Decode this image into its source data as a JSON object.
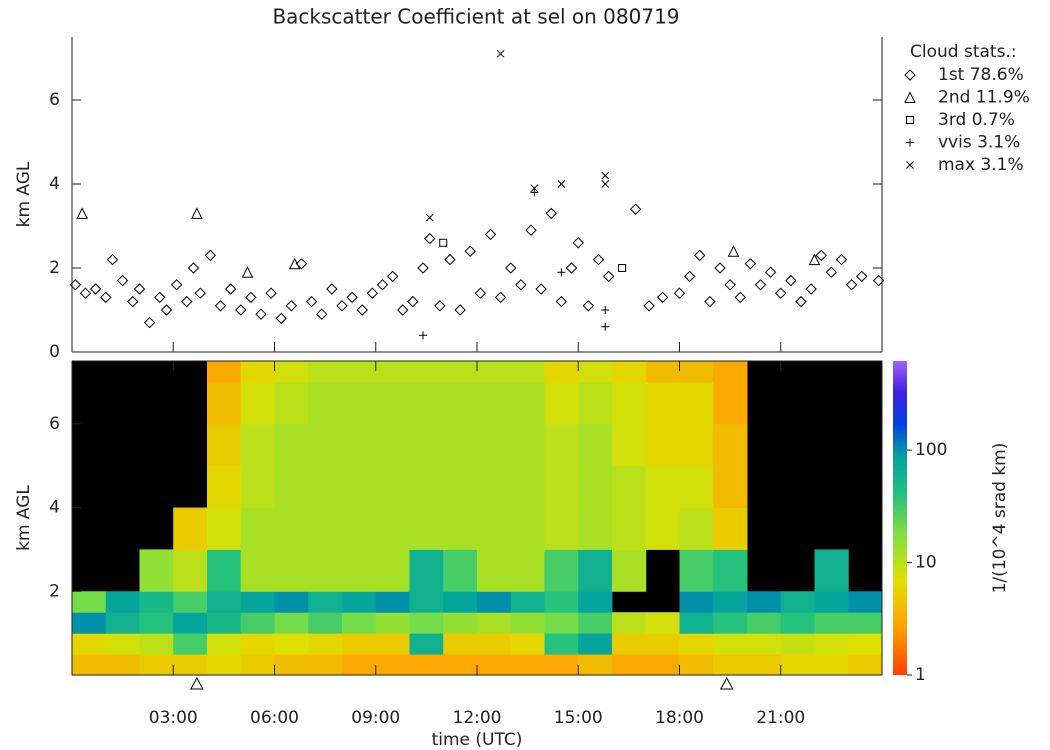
{
  "chart_data": [
    {
      "type": "scatter",
      "title": "Backscatter Coefficient at sel on 080719",
      "ylabel": "km AGL",
      "xlim": [
        0,
        24
      ],
      "ylim": [
        0,
        7.5
      ],
      "yticks": [
        0,
        2,
        4,
        6
      ],
      "xticks": [
        {
          "value": 3,
          "label": "03:00"
        },
        {
          "value": 6,
          "label": "06:00"
        },
        {
          "value": 9,
          "label": "09:00"
        },
        {
          "value": 12,
          "label": "12:00"
        },
        {
          "value": 15,
          "label": "15:00"
        },
        {
          "value": 18,
          "label": "18:00"
        },
        {
          "value": 21,
          "label": "21:00"
        }
      ],
      "legend_title": "Cloud stats.:",
      "color": "#000000",
      "series": [
        {
          "name": "1st 78.6%",
          "marker": "diamond",
          "x": [
            0.1,
            0.4,
            0.7,
            1.0,
            1.2,
            1.5,
            1.8,
            2.0,
            2.3,
            2.6,
            2.8,
            3.1,
            3.4,
            3.6,
            3.8,
            4.1,
            4.4,
            4.7,
            5.0,
            5.3,
            5.6,
            5.9,
            6.2,
            6.5,
            6.8,
            7.1,
            7.4,
            7.7,
            8.0,
            8.3,
            8.6,
            8.9,
            9.2,
            9.5,
            9.8,
            10.1,
            10.4,
            10.6,
            10.9,
            11.2,
            11.5,
            11.8,
            12.1,
            12.4,
            12.7,
            13.0,
            13.3,
            13.6,
            13.9,
            14.2,
            14.5,
            14.8,
            15.0,
            15.3,
            15.6,
            15.9,
            16.7,
            17.1,
            17.5,
            18.0,
            18.3,
            18.6,
            18.9,
            19.2,
            19.5,
            19.8,
            20.1,
            20.4,
            20.7,
            21.0,
            21.3,
            21.6,
            21.9,
            22.2,
            22.5,
            22.8,
            23.1,
            23.4,
            23.9
          ],
          "values": [
            1.6,
            1.4,
            1.5,
            1.3,
            2.2,
            1.7,
            1.2,
            1.5,
            0.7,
            1.3,
            1.0,
            1.6,
            1.2,
            2.0,
            1.4,
            2.3,
            1.1,
            1.5,
            1.0,
            1.3,
            0.9,
            1.4,
            0.8,
            1.1,
            2.1,
            1.2,
            0.9,
            1.5,
            1.1,
            1.3,
            1.0,
            1.4,
            1.6,
            1.8,
            1.0,
            1.2,
            2.0,
            2.7,
            1.1,
            2.2,
            1.0,
            2.4,
            1.4,
            2.8,
            1.3,
            2.0,
            1.6,
            2.9,
            1.5,
            3.3,
            1.2,
            2.0,
            2.6,
            1.1,
            2.2,
            1.8,
            3.4,
            1.1,
            1.3,
            1.4,
            1.8,
            2.3,
            1.2,
            2.0,
            1.6,
            1.3,
            2.1,
            1.6,
            1.9,
            1.4,
            1.7,
            1.2,
            1.5,
            2.3,
            1.9,
            2.2,
            1.6,
            1.8,
            1.7
          ]
        },
        {
          "name": "2nd 11.9%",
          "marker": "triangle",
          "x": [
            0.3,
            3.7,
            5.2,
            6.6,
            19.6,
            22.0
          ],
          "values": [
            3.3,
            3.3,
            1.9,
            2.1,
            2.4,
            2.2
          ]
        },
        {
          "name": "3rd  0.7%",
          "marker": "square",
          "x": [
            11.0,
            16.3
          ],
          "values": [
            2.6,
            2.0
          ]
        },
        {
          "name": "vvis  3.1%",
          "marker": "plus",
          "x": [
            10.4,
            13.7,
            15.8,
            15.8,
            14.5
          ],
          "values": [
            0.4,
            3.8,
            0.6,
            1.0,
            1.9
          ]
        },
        {
          "name": "max  3.1%",
          "marker": "cross",
          "x": [
            12.7,
            10.6,
            13.7,
            14.5,
            15.8,
            15.8
          ],
          "values": [
            7.1,
            3.2,
            3.9,
            4.0,
            4.2,
            4.0
          ]
        }
      ]
    },
    {
      "type": "heatmap",
      "ylabel": "km AGL",
      "xlabel": "time (UTC)",
      "xlim": [
        0,
        24
      ],
      "ylim": [
        0,
        7.5
      ],
      "yticks": [
        2,
        4,
        6
      ],
      "xticks": [
        {
          "value": 3,
          "label": "03:00"
        },
        {
          "value": 6,
          "label": "06:00"
        },
        {
          "value": 9,
          "label": "09:00"
        },
        {
          "value": 12,
          "label": "12:00"
        },
        {
          "value": 15,
          "label": "15:00"
        },
        {
          "value": 18,
          "label": "18:00"
        },
        {
          "value": 21,
          "label": "21:00"
        }
      ],
      "xbins": [
        0,
        1,
        2,
        3,
        4,
        5,
        6,
        7,
        8,
        9,
        10,
        11,
        12,
        13,
        14,
        15,
        16,
        17,
        18,
        19,
        20,
        21,
        22,
        23,
        24
      ],
      "ybins": [
        0,
        0.5,
        1,
        1.5,
        2,
        3,
        4,
        5,
        6,
        7,
        7.5
      ],
      "z": [
        [
          4,
          4,
          5,
          5,
          6,
          5,
          4,
          4,
          3,
          3,
          3,
          3,
          3,
          3,
          3,
          4,
          3,
          3,
          4,
          5,
          5,
          6,
          6,
          5
        ],
        [
          6,
          8,
          10,
          30,
          8,
          6,
          7,
          6,
          5,
          5,
          60,
          5,
          5,
          6,
          40,
          80,
          5,
          5,
          6,
          8,
          8,
          9,
          8,
          7
        ],
        [
          100,
          60,
          40,
          80,
          50,
          30,
          20,
          30,
          20,
          15,
          20,
          15,
          12,
          15,
          20,
          30,
          10,
          8,
          60,
          40,
          30,
          40,
          30,
          30
        ],
        [
          20,
          80,
          50,
          30,
          60,
          80,
          100,
          60,
          80,
          100,
          60,
          80,
          100,
          60,
          40,
          80,
          null,
          null,
          100,
          80,
          100,
          60,
          80,
          100
        ],
        [
          null,
          null,
          15,
          10,
          40,
          12,
          12,
          12,
          12,
          12,
          60,
          30,
          12,
          12,
          30,
          60,
          12,
          null,
          30,
          40,
          null,
          null,
          60,
          null
        ],
        [
          null,
          null,
          null,
          5,
          8,
          12,
          12,
          12,
          12,
          12,
          12,
          12,
          12,
          12,
          10,
          12,
          10,
          8,
          10,
          5,
          null,
          null,
          null,
          null
        ],
        [
          null,
          null,
          null,
          null,
          6,
          10,
          12,
          12,
          12,
          12,
          12,
          12,
          12,
          12,
          10,
          12,
          10,
          8,
          8,
          4,
          null,
          null,
          null,
          null
        ],
        [
          null,
          null,
          null,
          null,
          5,
          10,
          12,
          12,
          12,
          12,
          12,
          12,
          12,
          12,
          10,
          12,
          8,
          6,
          6,
          4,
          null,
          null,
          null,
          null
        ],
        [
          null,
          null,
          null,
          null,
          4,
          8,
          10,
          12,
          12,
          12,
          12,
          12,
          12,
          12,
          8,
          10,
          8,
          6,
          6,
          3,
          null,
          null,
          null,
          null
        ],
        [
          null,
          null,
          null,
          null,
          3,
          6,
          8,
          10,
          10,
          10,
          10,
          10,
          10,
          10,
          6,
          8,
          6,
          4,
          4,
          3,
          null,
          null,
          null,
          null
        ]
      ],
      "zlim": [
        1,
        620
      ],
      "zlog": true,
      "zticks": [
        1,
        10,
        100
      ],
      "colorbar_label": "1/(10^4 srad km)",
      "markers_x": [
        3.7,
        19.4
      ]
    }
  ]
}
